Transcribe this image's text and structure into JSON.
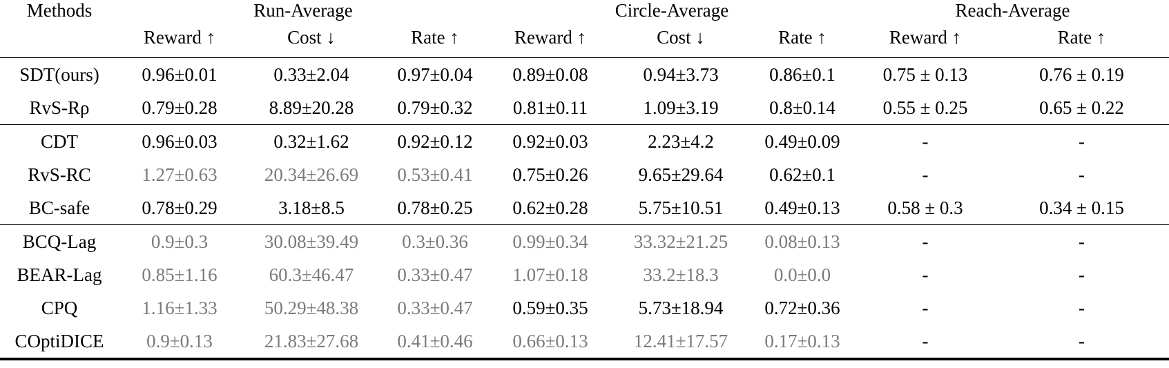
{
  "header": {
    "methods": "Methods",
    "groups": [
      "Run-Average",
      "Circle-Average",
      "Reach-Average"
    ],
    "columns": [
      "Reward ↑",
      "Cost ↓",
      "Rate ↑",
      "Reward ↑",
      "Cost ↓",
      "Rate ↑",
      "Reward ↑",
      "Rate ↑"
    ]
  },
  "rows": [
    {
      "method": "SDT(ours)",
      "cells": [
        {
          "v": "0.96±0.01",
          "s": "b"
        },
        {
          "v": "0.33±2.04"
        },
        {
          "v": "0.97±0.04",
          "s": "b"
        },
        {
          "v": "0.89±0.08"
        },
        {
          "v": "0.94±3.73",
          "s": "b"
        },
        {
          "v": "0.86±0.1",
          "s": "b"
        },
        {
          "v": "0.75 ± 0.13",
          "s": "b"
        },
        {
          "v": "0.76 ± 0.19",
          "s": "b"
        }
      ]
    },
    {
      "method": "RvS-Rρ",
      "cells": [
        {
          "v": "0.79±0.28"
        },
        {
          "v": "8.89±20.28"
        },
        {
          "v": "0.79±0.32"
        },
        {
          "v": "0.81±0.11"
        },
        {
          "v": "1.09±3.19"
        },
        {
          "v": "0.8±0.14"
        },
        {
          "v": "0.55 ± 0.25"
        },
        {
          "v": "0.65 ± 0.22"
        }
      ]
    },
    {
      "method": "CDT",
      "cells": [
        {
          "v": "0.96±0.03",
          "s": "b"
        },
        {
          "v": "0.32±1.62",
          "s": "b"
        },
        {
          "v": "0.92±0.12"
        },
        {
          "v": "0.92±0.03",
          "s": "b"
        },
        {
          "v": "2.23±4.2"
        },
        {
          "v": "0.49±0.09"
        },
        {
          "v": "-"
        },
        {
          "v": "-"
        }
      ]
    },
    {
      "method": "RvS-RC",
      "cells": [
        {
          "v": "1.27±0.63",
          "s": "g"
        },
        {
          "v": "20.34±26.69",
          "s": "g"
        },
        {
          "v": "0.53±0.41",
          "s": "g"
        },
        {
          "v": "0.75±0.26"
        },
        {
          "v": "9.65±29.64"
        },
        {
          "v": "0.62±0.1"
        },
        {
          "v": "-"
        },
        {
          "v": "-"
        }
      ]
    },
    {
      "method": "BC-safe",
      "cells": [
        {
          "v": "0.78±0.29"
        },
        {
          "v": "3.18±8.5"
        },
        {
          "v": "0.78±0.25"
        },
        {
          "v": "0.62±0.28"
        },
        {
          "v": "5.75±10.51"
        },
        {
          "v": "0.49±0.13"
        },
        {
          "v": "0.58 ± 0.3"
        },
        {
          "v": "0.34 ± 0.15"
        }
      ]
    },
    {
      "method": "BCQ-Lag",
      "cells": [
        {
          "v": "0.9±0.3",
          "s": "g"
        },
        {
          "v": "30.08±39.49",
          "s": "g"
        },
        {
          "v": "0.3±0.36",
          "s": "g"
        },
        {
          "v": "0.99±0.34",
          "s": "g"
        },
        {
          "v": "33.32±21.25",
          "s": "g"
        },
        {
          "v": "0.08±0.13",
          "s": "g"
        },
        {
          "v": "-"
        },
        {
          "v": "-"
        }
      ]
    },
    {
      "method": "BEAR-Lag",
      "cells": [
        {
          "v": "0.85±1.16",
          "s": "g"
        },
        {
          "v": "60.3±46.47",
          "s": "g"
        },
        {
          "v": "0.33±0.47",
          "s": "g"
        },
        {
          "v": "1.07±0.18",
          "s": "g"
        },
        {
          "v": "33.2±18.3",
          "s": "g"
        },
        {
          "v": "0.0±0.0",
          "s": "g"
        },
        {
          "v": "-"
        },
        {
          "v": "-"
        }
      ]
    },
    {
      "method": "CPQ",
      "cells": [
        {
          "v": "1.16±1.33",
          "s": "g"
        },
        {
          "v": "50.29±48.38",
          "s": "g"
        },
        {
          "v": "0.33±0.47",
          "s": "g"
        },
        {
          "v": "0.59±0.35"
        },
        {
          "v": "5.73±18.94"
        },
        {
          "v": "0.72±0.36"
        },
        {
          "v": "-"
        },
        {
          "v": "-"
        }
      ]
    },
    {
      "method": "COptiDICE",
      "cells": [
        {
          "v": "0.9±0.13",
          "s": "g"
        },
        {
          "v": "21.83±27.68",
          "s": "g"
        },
        {
          "v": "0.41±0.46",
          "s": "g"
        },
        {
          "v": "0.66±0.13",
          "s": "g"
        },
        {
          "v": "12.41±17.57",
          "s": "g"
        },
        {
          "v": "0.17±0.13",
          "s": "g"
        },
        {
          "v": "-"
        },
        {
          "v": "-"
        }
      ]
    }
  ],
  "colors": {
    "text": "#000000",
    "muted": "#7a7a7a"
  }
}
